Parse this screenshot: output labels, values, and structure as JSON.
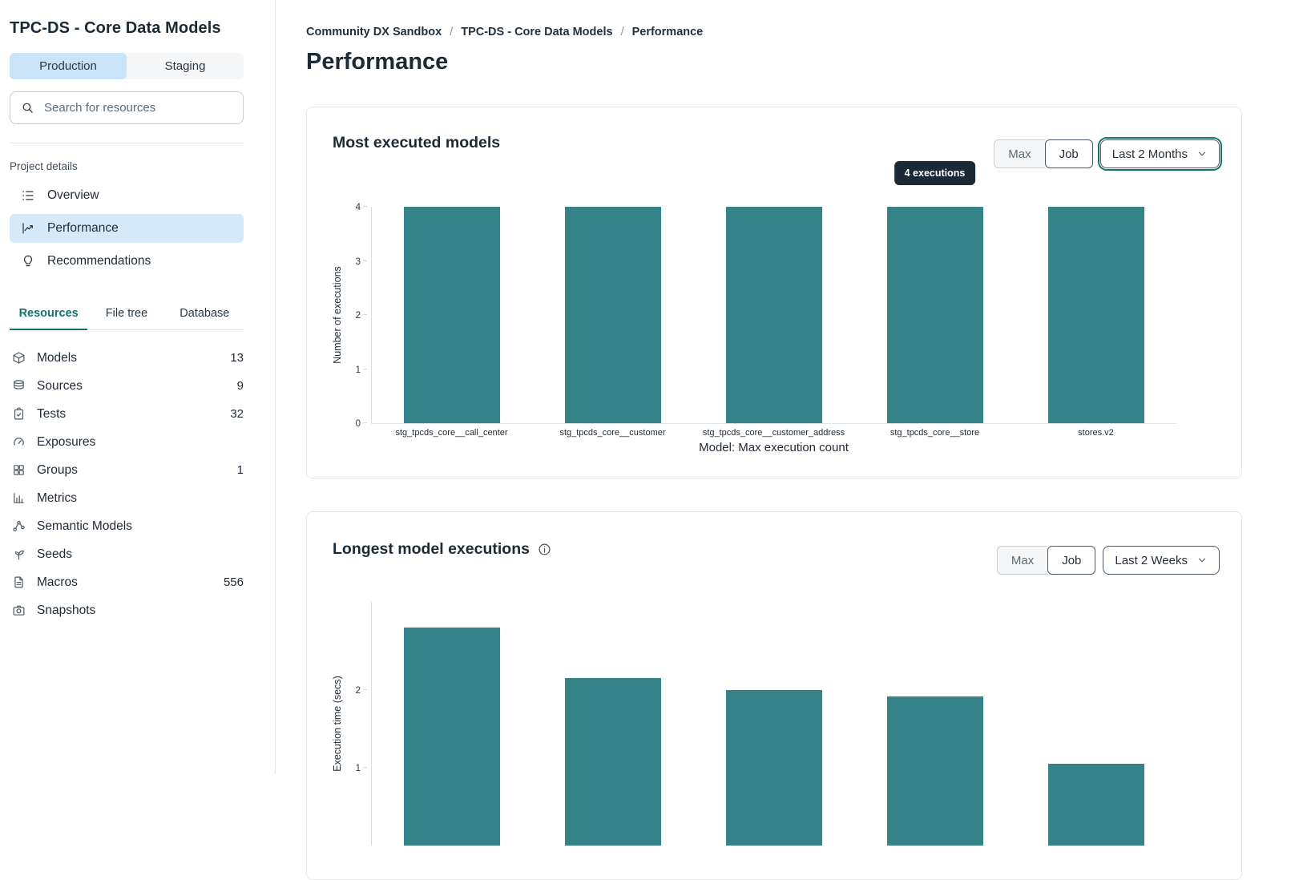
{
  "sidebar": {
    "title": "TPC-DS - Core Data Models",
    "env_tabs": [
      {
        "label": "Production",
        "active": true
      },
      {
        "label": "Staging",
        "active": false
      }
    ],
    "search": {
      "placeholder": "Search for resources",
      "icon": "search-icon"
    },
    "project_details_label": "Project details",
    "nav": [
      {
        "label": "Overview",
        "icon": "overview-list-icon",
        "active": false
      },
      {
        "label": "Performance",
        "icon": "performance-chart-icon",
        "active": true
      },
      {
        "label": "Recommendations",
        "icon": "lightbulb-icon",
        "active": false
      }
    ],
    "tabs": [
      {
        "label": "Resources",
        "active": true
      },
      {
        "label": "File tree",
        "active": false
      },
      {
        "label": "Database",
        "active": false
      }
    ],
    "resources": [
      {
        "label": "Models",
        "count": "13",
        "icon": "cube-icon"
      },
      {
        "label": "Sources",
        "count": "9",
        "icon": "database-icon"
      },
      {
        "label": "Tests",
        "count": "32",
        "icon": "clipboard-check-icon"
      },
      {
        "label": "Exposures",
        "count": "",
        "icon": "gauge-icon"
      },
      {
        "label": "Groups",
        "count": "1",
        "icon": "grid-icon"
      },
      {
        "label": "Metrics",
        "count": "",
        "icon": "bar-chart-icon"
      },
      {
        "label": "Semantic Models",
        "count": "",
        "icon": "graph-nodes-icon"
      },
      {
        "label": "Seeds",
        "count": "",
        "icon": "seedling-icon"
      },
      {
        "label": "Macros",
        "count": "556",
        "icon": "document-icon"
      },
      {
        "label": "Snapshots",
        "count": "",
        "icon": "camera-icon"
      }
    ]
  },
  "main": {
    "breadcrumb": [
      {
        "label": "Community DX Sandbox",
        "current": false
      },
      {
        "label": "TPC-DS - Core Data Models",
        "current": false
      },
      {
        "label": "Performance",
        "current": true
      }
    ],
    "page_title": "Performance"
  },
  "colors": {
    "bar_teal": "#338388",
    "active_blue_bg": "#c9e4f8",
    "accent_teal": "#15726b",
    "tooltip_bg": "#1b2836"
  },
  "chart_data": [
    {
      "type": "bar",
      "title": "Most executed models",
      "categories": [
        "stg_tpcds_core__call_center",
        "stg_tpcds_core__customer",
        "stg_tpcds_core__customer_address",
        "stg_tpcds_core__store",
        "stores.v2"
      ],
      "values": [
        4,
        4,
        4,
        4,
        4
      ],
      "ylabel": "Number of executions",
      "xlabel": "Model: Max execution count",
      "yticks": [
        0,
        1,
        2,
        3,
        4
      ],
      "ylim": [
        0,
        4
      ],
      "grid": false,
      "legend": "none",
      "bar_color": "#338388",
      "tooltip": {
        "text": "4 executions",
        "target_category": "stg_tpcds_core__store",
        "bar_index": 3
      },
      "controls": {
        "toggle": [
          {
            "label": "Max",
            "selected": false
          },
          {
            "label": "Job",
            "selected": true
          }
        ],
        "time_range": "Last 2 Months",
        "time_range_focused": true
      }
    },
    {
      "type": "bar",
      "title": "Longest model executions",
      "categories": [],
      "values": [
        2.8,
        2.15,
        2.0,
        1.92,
        1.05
      ],
      "ylabel": "Execution time (secs)",
      "xlabel": "",
      "yticks": [
        1,
        2
      ],
      "ylim": [
        0,
        3
      ],
      "grid": false,
      "legend": "none",
      "bar_color": "#338388",
      "controls": {
        "toggle": [
          {
            "label": "Max",
            "selected": false
          },
          {
            "label": "Job",
            "selected": true
          }
        ],
        "time_range": "Last 2 Weeks",
        "time_range_focused": false
      }
    }
  ]
}
